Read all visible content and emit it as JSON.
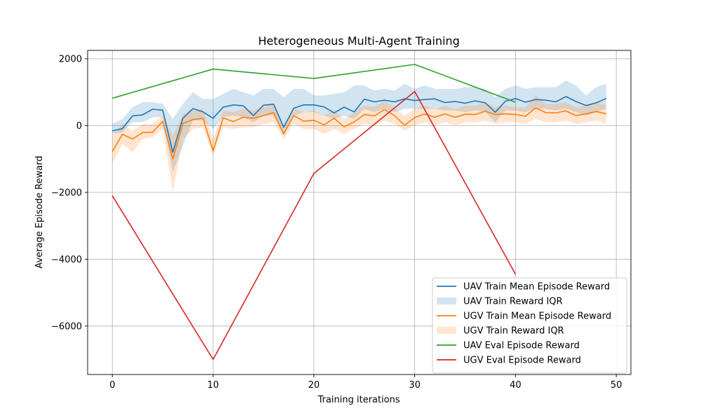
{
  "chart_data": {
    "type": "line",
    "title": "Heterogeneous Multi-Agent Training",
    "xlabel": "Training iterations",
    "ylabel": "Average Episode Reward",
    "xlim": [
      -2.45,
      51.45
    ],
    "ylim": [
      -7450,
      2250
    ],
    "xticks": [
      0,
      10,
      20,
      30,
      40,
      50
    ],
    "yticks": [
      -6000,
      -4000,
      -2000,
      0,
      2000
    ],
    "grid": true,
    "legend_position": "lower-right",
    "colors": {
      "uav_train": "#1f77b4",
      "uav_iqr": "#1f77b4",
      "ugv_train": "#ff7f0e",
      "ugv_iqr": "#ff7f0e",
      "uav_eval": "#2ca02c",
      "ugv_eval": "#d62728"
    },
    "series": [
      {
        "name": "UAV Train Mean Episode Reward",
        "kind": "line",
        "color": "#1f77b4",
        "x": [
          0,
          1,
          2,
          3,
          4,
          5,
          6,
          7,
          8,
          9,
          10,
          11,
          12,
          13,
          14,
          15,
          16,
          17,
          18,
          19,
          20,
          21,
          22,
          23,
          24,
          25,
          26,
          27,
          28,
          29,
          30,
          31,
          32,
          33,
          34,
          35,
          36,
          37,
          38,
          39,
          40,
          41,
          42,
          43,
          44,
          45,
          46,
          47,
          48,
          49
        ],
        "y": [
          -160,
          -90,
          290,
          320,
          490,
          460,
          -800,
          220,
          510,
          410,
          220,
          550,
          620,
          590,
          300,
          610,
          640,
          -50,
          520,
          620,
          620,
          560,
          380,
          550,
          410,
          790,
          710,
          760,
          710,
          800,
          750,
          780,
          800,
          690,
          720,
          670,
          740,
          680,
          400,
          730,
          810,
          700,
          780,
          760,
          710,
          870,
          720,
          600,
          680,
          810
        ]
      },
      {
        "name": "UAV Train Reward IQR",
        "kind": "band",
        "color": "#1f77b4",
        "x": [
          0,
          1,
          2,
          3,
          4,
          5,
          6,
          7,
          8,
          9,
          10,
          11,
          12,
          13,
          14,
          15,
          16,
          17,
          18,
          19,
          20,
          21,
          22,
          23,
          24,
          25,
          26,
          27,
          28,
          29,
          30,
          31,
          32,
          33,
          34,
          35,
          36,
          37,
          38,
          39,
          40,
          41,
          42,
          43,
          44,
          45,
          46,
          47,
          48,
          49
        ],
        "low": [
          -250,
          -200,
          100,
          100,
          250,
          250,
          -1400,
          -600,
          150,
          150,
          -100,
          250,
          300,
          250,
          100,
          300,
          300,
          -300,
          300,
          400,
          400,
          300,
          200,
          300,
          200,
          500,
          400,
          500,
          400,
          500,
          500,
          500,
          500,
          450,
          450,
          400,
          450,
          400,
          100,
          450,
          450,
          400,
          500,
          500,
          450,
          500,
          400,
          300,
          400,
          500
        ],
        "high": [
          50,
          200,
          550,
          700,
          700,
          650,
          200,
          650,
          1000,
          800,
          800,
          950,
          1100,
          1000,
          900,
          1100,
          1100,
          850,
          1100,
          1100,
          900,
          900,
          950,
          1000,
          1200,
          1200,
          1050,
          1100,
          1050,
          1250,
          1100,
          1200,
          1100,
          1100,
          1100,
          1150,
          1150,
          1100,
          850,
          1100,
          1200,
          1100,
          1150,
          1150,
          1150,
          1350,
          1200,
          900,
          1150,
          1250
        ]
      },
      {
        "name": "UGV Train Mean Episode Reward",
        "kind": "line",
        "color": "#ff7f0e",
        "x": [
          0,
          1,
          2,
          3,
          4,
          5,
          6,
          7,
          8,
          9,
          10,
          11,
          12,
          13,
          14,
          15,
          16,
          17,
          18,
          19,
          20,
          21,
          22,
          23,
          24,
          25,
          26,
          27,
          28,
          29,
          30,
          31,
          32,
          33,
          34,
          35,
          36,
          37,
          38,
          39,
          40,
          41,
          42,
          43,
          44,
          45,
          46,
          47,
          48,
          49
        ],
        "y": [
          -780,
          -260,
          -400,
          -210,
          -200,
          130,
          -1000,
          60,
          180,
          220,
          -760,
          230,
          120,
          250,
          220,
          300,
          390,
          -250,
          300,
          130,
          160,
          20,
          220,
          -40,
          110,
          330,
          290,
          480,
          300,
          10,
          240,
          350,
          250,
          350,
          250,
          340,
          330,
          430,
          330,
          350,
          330,
          280,
          530,
          390,
          380,
          440,
          300,
          350,
          420,
          350
        ]
      },
      {
        "name": "UGV Train Reward IQR",
        "kind": "band",
        "color": "#ff7f0e",
        "x": [
          0,
          1,
          2,
          3,
          4,
          5,
          6,
          7,
          8,
          9,
          10,
          11,
          12,
          13,
          14,
          15,
          16,
          17,
          18,
          19,
          20,
          21,
          22,
          23,
          24,
          25,
          26,
          27,
          28,
          29,
          30,
          31,
          32,
          33,
          34,
          35,
          36,
          37,
          38,
          39,
          40,
          41,
          42,
          43,
          44,
          45,
          46,
          47,
          48,
          49
        ],
        "low": [
          -1150,
          -550,
          -800,
          -400,
          -350,
          -100,
          -2000,
          -400,
          -100,
          -50,
          -900,
          -50,
          -100,
          -50,
          -50,
          50,
          100,
          -400,
          50,
          -100,
          -100,
          -250,
          -100,
          -250,
          -100,
          50,
          0,
          150,
          50,
          -150,
          0,
          100,
          0,
          100,
          0,
          100,
          100,
          150,
          50,
          100,
          100,
          50,
          200,
          100,
          100,
          150,
          50,
          100,
          150,
          50
        ],
        "high": [
          -300,
          50,
          -150,
          50,
          50,
          300,
          -300,
          350,
          450,
          500,
          -400,
          450,
          400,
          500,
          450,
          550,
          650,
          0,
          500,
          400,
          450,
          300,
          450,
          200,
          400,
          600,
          550,
          750,
          550,
          300,
          500,
          600,
          500,
          600,
          500,
          600,
          600,
          700,
          550,
          600,
          550,
          550,
          900,
          650,
          650,
          700,
          550,
          600,
          700,
          600
        ]
      },
      {
        "name": "UAV Eval Episode Reward",
        "kind": "line",
        "color": "#2ca02c",
        "x": [
          0,
          10,
          20,
          30,
          40
        ],
        "y": [
          820,
          1690,
          1410,
          1830,
          700
        ]
      },
      {
        "name": "UGV Eval Episode Reward",
        "kind": "line",
        "color": "#d62728",
        "x": [
          0,
          10,
          20,
          30,
          40
        ],
        "y": [
          -2100,
          -7000,
          -1430,
          1020,
          -4450
        ]
      }
    ]
  }
}
